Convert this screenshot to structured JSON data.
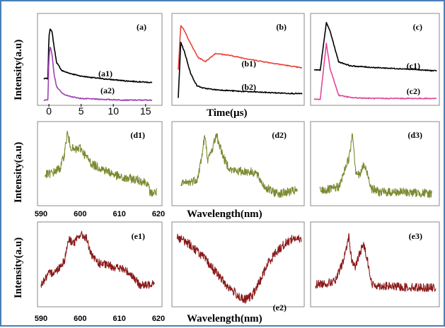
{
  "colors": {
    "frame_border": "#4a7fb5",
    "black": "#000000",
    "red": "#e8453c",
    "purple": "#a040b8",
    "pink": "#e0489a",
    "olive": "#7a8a30",
    "maroon": "#8b1a1a"
  },
  "texts": {
    "y_label_row1": "Intensity(a.u)",
    "y_label_row2": "Intensity(a.u)",
    "y_label_row3": "Intensity(a.u)",
    "x_label_row1": "Time(µs)",
    "x_label_row2": "Wavelength(nm)",
    "x_label_row3": "Wavelength(nm)"
  },
  "chart_data": [
    {
      "type": "line",
      "panel": "(a)",
      "xlabel": "Time(µs)",
      "ylabel": "Intensity(a.u)",
      "xlim": [
        -1,
        17
      ],
      "ylim": [
        0,
        1
      ],
      "xticks": [
        0,
        5,
        10,
        15
      ],
      "xtick_labels": [
        "0",
        "5",
        "10",
        "15"
      ],
      "series": [
        {
          "name": "(a1)",
          "color": "#000000",
          "x": [
            -0.8,
            -0.15,
            0,
            0.2,
            0.5,
            0.8,
            1.2,
            2,
            3,
            5,
            8,
            12,
            16
          ],
          "y": [
            0.3,
            0.3,
            0.82,
            0.93,
            0.88,
            0.7,
            0.5,
            0.4,
            0.37,
            0.33,
            0.3,
            0.27,
            0.25
          ]
        },
        {
          "name": "(a2)",
          "color": "#a040b8",
          "x": [
            -0.8,
            -0.15,
            0,
            0.2,
            0.5,
            0.8,
            1.2,
            2,
            3,
            5,
            8,
            12,
            16
          ],
          "y": [
            0.03,
            0.03,
            0.55,
            0.7,
            0.6,
            0.35,
            0.2,
            0.12,
            0.08,
            0.05,
            0.04,
            0.03,
            0.03
          ]
        }
      ]
    },
    {
      "type": "line",
      "panel": "(b)",
      "xlabel": "Time(µs)",
      "ylim": [
        0,
        1
      ],
      "series": [
        {
          "name": "(b1)",
          "color": "#e8453c",
          "x": [
            0,
            0.2,
            0.5,
            1,
            1.6,
            2.2,
            3,
            4,
            6,
            8,
            10
          ],
          "y": [
            0.4,
            0.95,
            0.88,
            0.72,
            0.55,
            0.5,
            0.6,
            0.58,
            0.52,
            0.47,
            0.42
          ]
        },
        {
          "name": "(b2)",
          "color": "#000000",
          "x": [
            0,
            0.2,
            0.5,
            1,
            1.5,
            2,
            3,
            5,
            8,
            10
          ],
          "y": [
            0.05,
            0.74,
            0.62,
            0.35,
            0.2,
            0.17,
            0.15,
            0.13,
            0.11,
            0.1
          ]
        }
      ]
    },
    {
      "type": "line",
      "panel": "(c)",
      "xlabel": "Time(µs)",
      "ylim": [
        0,
        1
      ],
      "series": [
        {
          "name": "(c1)",
          "color": "#000000",
          "x": [
            0,
            0.5,
            1,
            1.3,
            2,
            3,
            5,
            8,
            10
          ],
          "y": [
            0.38,
            0.38,
            0.95,
            0.85,
            0.48,
            0.43,
            0.41,
            0.39,
            0.37
          ]
        },
        {
          "name": "(c2)",
          "color": "#e0489a",
          "x": [
            0,
            0.5,
            1,
            1.3,
            2,
            3,
            5,
            8,
            10
          ],
          "y": [
            0.03,
            0.03,
            0.7,
            0.4,
            0.08,
            0.05,
            0.04,
            0.04,
            0.04
          ]
        }
      ]
    },
    {
      "type": "line",
      "panel": "(d1)",
      "xlabel": "Wavelength(nm)",
      "ylabel": "Intensity(a.u)",
      "xlim": [
        590,
        620
      ],
      "ylim": [
        0,
        1
      ],
      "xticks": [
        590,
        600,
        610,
        620
      ],
      "xtick_labels": [
        "590",
        "600",
        "610",
        "620"
      ],
      "series": [
        {
          "name": "",
          "color": "#7a8a30",
          "x": [
            591,
            593,
            595,
            596,
            596.7,
            597.5,
            598.5,
            600,
            601.5,
            603,
            605,
            607,
            609,
            611,
            613,
            615,
            617,
            618,
            619.5
          ],
          "y": [
            0.35,
            0.38,
            0.45,
            0.65,
            0.92,
            0.75,
            0.68,
            0.72,
            0.6,
            0.5,
            0.45,
            0.4,
            0.35,
            0.3,
            0.3,
            0.28,
            0.25,
            0.1,
            0.12
          ]
        }
      ]
    },
    {
      "type": "line",
      "panel": "(d2)",
      "xlabel": "Wavelength(nm)",
      "xlim": [
        590,
        620
      ],
      "ylim": [
        0,
        1
      ],
      "series": [
        {
          "name": "",
          "color": "#7a8a30",
          "x": [
            591,
            593,
            595,
            596,
            596.7,
            597.5,
            598.5,
            599.5,
            600.5,
            601.5,
            603,
            605,
            607,
            609,
            611,
            613,
            615,
            617,
            619
          ],
          "y": [
            0.22,
            0.25,
            0.3,
            0.6,
            0.88,
            0.55,
            0.7,
            0.9,
            0.72,
            0.55,
            0.42,
            0.4,
            0.4,
            0.38,
            0.2,
            0.12,
            0.1,
            0.12,
            0.14
          ]
        }
      ]
    },
    {
      "type": "line",
      "panel": "(d3)",
      "xlabel": "Wavelength(nm)",
      "xlim": [
        590,
        620
      ],
      "ylim": [
        0,
        1
      ],
      "series": [
        {
          "name": "",
          "color": "#7a8a30",
          "x": [
            591,
            594,
            596,
            597.5,
            598.5,
            599.2,
            600,
            601,
            602,
            603,
            604,
            606,
            609,
            612,
            615,
            619
          ],
          "y": [
            0.12,
            0.14,
            0.18,
            0.45,
            0.6,
            0.95,
            0.4,
            0.32,
            0.48,
            0.35,
            0.15,
            0.1,
            0.1,
            0.1,
            0.09,
            0.08
          ]
        }
      ]
    },
    {
      "type": "line",
      "panel": "(e1)",
      "xlabel": "Wavelength(nm)",
      "ylabel": "Intensity(a.u)",
      "xlim": [
        590,
        620
      ],
      "ylim": [
        0,
        1
      ],
      "xticks": [
        590,
        600,
        610,
        620
      ],
      "xtick_labels": [
        "590",
        "600",
        "610",
        "620"
      ],
      "series": [
        {
          "name": "",
          "color": "#8b1a1a",
          "x": [
            590,
            592,
            594,
            596,
            597,
            598.5,
            600,
            601.5,
            603,
            605,
            607,
            609,
            611,
            613,
            615,
            617,
            619
          ],
          "y": [
            0.2,
            0.35,
            0.4,
            0.55,
            0.85,
            0.8,
            0.92,
            0.88,
            0.6,
            0.5,
            0.48,
            0.45,
            0.42,
            0.35,
            0.2,
            0.18,
            0.25
          ]
        }
      ]
    },
    {
      "type": "line",
      "panel": "(e2)",
      "xlabel": "Wavelength(nm)",
      "xlim": [
        590,
        620
      ],
      "ylim": [
        0,
        1
      ],
      "series": [
        {
          "name": "",
          "color": "#8b1a1a",
          "x": [
            590,
            593,
            596,
            599,
            602,
            604,
            606,
            608,
            610,
            612,
            614,
            616,
            618,
            620
          ],
          "y": [
            0.9,
            0.8,
            0.65,
            0.45,
            0.25,
            0.15,
            0.05,
            0.1,
            0.3,
            0.55,
            0.7,
            0.8,
            0.88,
            0.85
          ]
        }
      ]
    },
    {
      "type": "line",
      "panel": "(e3)",
      "xlabel": "Wavelength(nm)",
      "xlim": [
        590,
        620
      ],
      "ylim": [
        0,
        1
      ],
      "series": [
        {
          "name": "",
          "color": "#8b1a1a",
          "x": [
            590,
            593,
            595,
            597,
            598.3,
            599,
            600,
            601,
            602,
            603,
            604,
            606,
            609,
            612,
            615,
            620
          ],
          "y": [
            0.2,
            0.22,
            0.25,
            0.55,
            0.9,
            0.55,
            0.45,
            0.65,
            0.78,
            0.55,
            0.2,
            0.18,
            0.17,
            0.16,
            0.16,
            0.15
          ]
        }
      ]
    }
  ]
}
